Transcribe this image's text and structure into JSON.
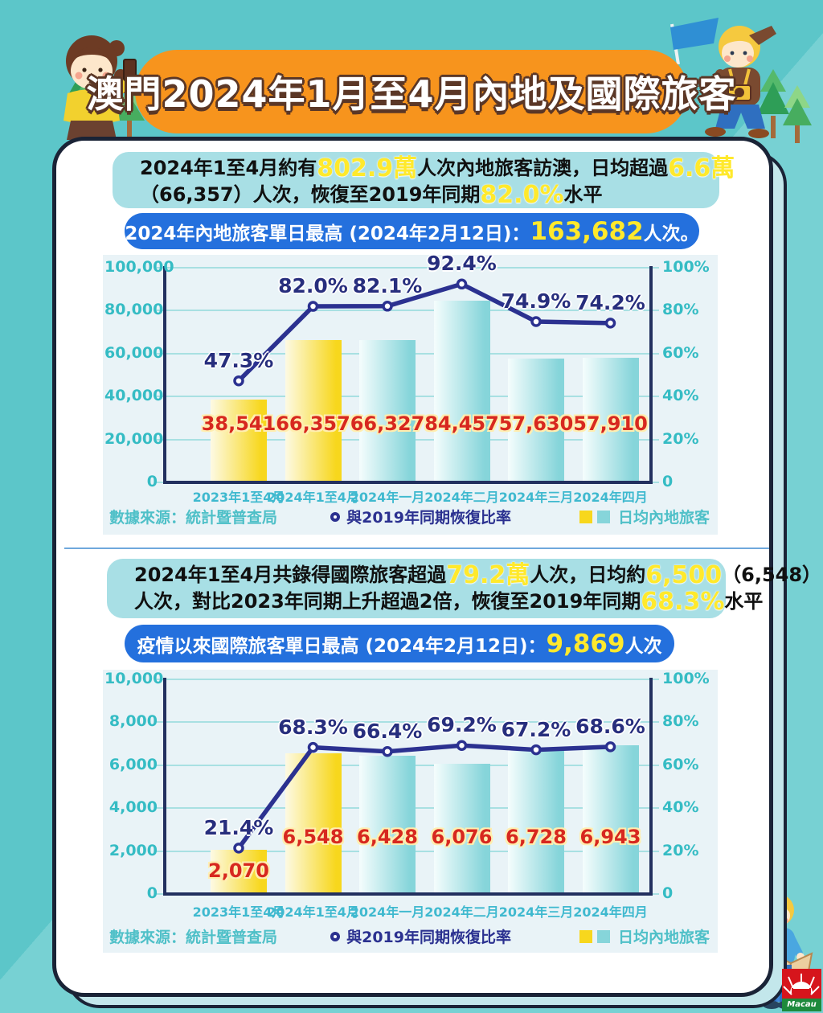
{
  "title": "澳門2024年1月至4月內地及國際旅客",
  "colors": {
    "background_teal": "#5cc6c9",
    "banner_orange": "#f7941d",
    "highlight_yellow": "#ffe92c",
    "pill_blue": "#2470dd",
    "bar_yellow": "#f7d71d",
    "bar_teal": "#86d5da",
    "line_navy": "#2b3190",
    "value_red": "#d7281f"
  },
  "sections": [
    {
      "summary": {
        "l1a": "2024年1至4月約有",
        "l1b": "802.9萬",
        "l1c": "人次內地旅客訪澳，日均超過",
        "l1d": "6.6萬",
        "l2a": "（66,357）人次，恢復至2019年同期",
        "l2b": "82.0%",
        "l2c": "水平"
      },
      "highlight": {
        "a": "2024年內地旅客單日最高 (2024年2月12日)：",
        "b": "163,682",
        "c": "人次。"
      },
      "footer": {
        "source": "數據來源：統計暨普查局",
        "line_legend": "與2019年同期恢復比率",
        "bar_legend": "日均內地旅客"
      }
    },
    {
      "summary": {
        "l1a": "2024年1至4月共錄得國際旅客超過",
        "l1b": "79.2萬",
        "l1c": "人次，日均約",
        "l1d": "6,500",
        "l1e": "（6,548）",
        "l2a": "人次，對比2023年同期上升超過2倍，恢復至2019年同期",
        "l2b": "68.3%",
        "l2c": "水平"
      },
      "highlight": {
        "a": "疫情以來國際旅客單日最高 (2024年2月12日)：",
        "b": "9,869",
        "c": "人次"
      },
      "footer": {
        "source": "數據來源：統計暨普查局",
        "line_legend": "與2019年同期恢復比率",
        "bar_legend": "日均內地旅客"
      }
    }
  ],
  "chart_data": [
    {
      "type": "bar",
      "subtype": "bar+line-combo",
      "categories": [
        "2023年1至4月",
        "2024年1至4月",
        "2024年一月",
        "2024年二月",
        "2024年三月",
        "2024年四月"
      ],
      "series": [
        {
          "name": "日均內地旅客",
          "kind": "bar",
          "values": [
            38541,
            66357,
            66327,
            84457,
            57630,
            57910
          ],
          "value_labels": [
            "38,541",
            "66,357",
            "66,327",
            "84,457",
            "57,630",
            "57,910"
          ],
          "bar_color_keys": [
            "yellow",
            "yellow",
            "teal",
            "teal",
            "teal",
            "teal"
          ]
        },
        {
          "name": "與2019年同期恢復比率",
          "kind": "line",
          "values": [
            47.3,
            82.0,
            82.1,
            92.4,
            74.9,
            74.2
          ],
          "point_labels": [
            "47.3%",
            "82.0%",
            "82.1%",
            "92.4%",
            "74.9%",
            "74.2%"
          ]
        }
      ],
      "left_axis": {
        "max": 100000,
        "ticks": [
          "100,000",
          "80,000",
          "60,000",
          "40,000",
          "20,000",
          "0"
        ]
      },
      "right_axis": {
        "max": 100,
        "ticks": [
          "100%",
          "80%",
          "60%",
          "40%",
          "20%",
          "0"
        ]
      },
      "grid": true,
      "legend_position": "bottom"
    },
    {
      "type": "bar",
      "subtype": "bar+line-combo",
      "categories": [
        "2023年1至4月",
        "2024年1至4月",
        "2024年一月",
        "2024年二月",
        "2024年三月",
        "2024年四月"
      ],
      "series": [
        {
          "name": "日均內地旅客",
          "kind": "bar",
          "values": [
            2070,
            6548,
            6428,
            6076,
            6728,
            6943
          ],
          "value_labels": [
            "2,070",
            "6,548",
            "6,428",
            "6,076",
            "6,728",
            "6,943"
          ],
          "bar_color_keys": [
            "yellow",
            "yellow",
            "teal",
            "teal",
            "teal",
            "teal"
          ]
        },
        {
          "name": "與2019年同期恢復比率",
          "kind": "line",
          "values": [
            21.4,
            68.3,
            66.4,
            69.2,
            67.2,
            68.6
          ],
          "point_labels": [
            "21.4%",
            "68.3%",
            "66.4%",
            "69.2%",
            "67.2%",
            "68.6%"
          ]
        }
      ],
      "left_axis": {
        "max": 10000,
        "ticks": [
          "10,000",
          "8,000",
          "6,000",
          "4,000",
          "2,000",
          "0"
        ]
      },
      "right_axis": {
        "max": 100,
        "ticks": [
          "100%",
          "80%",
          "60%",
          "40%",
          "20%",
          "0"
        ]
      },
      "grid": true,
      "legend_position": "bottom"
    }
  ],
  "logo": {
    "text": "Macau"
  }
}
